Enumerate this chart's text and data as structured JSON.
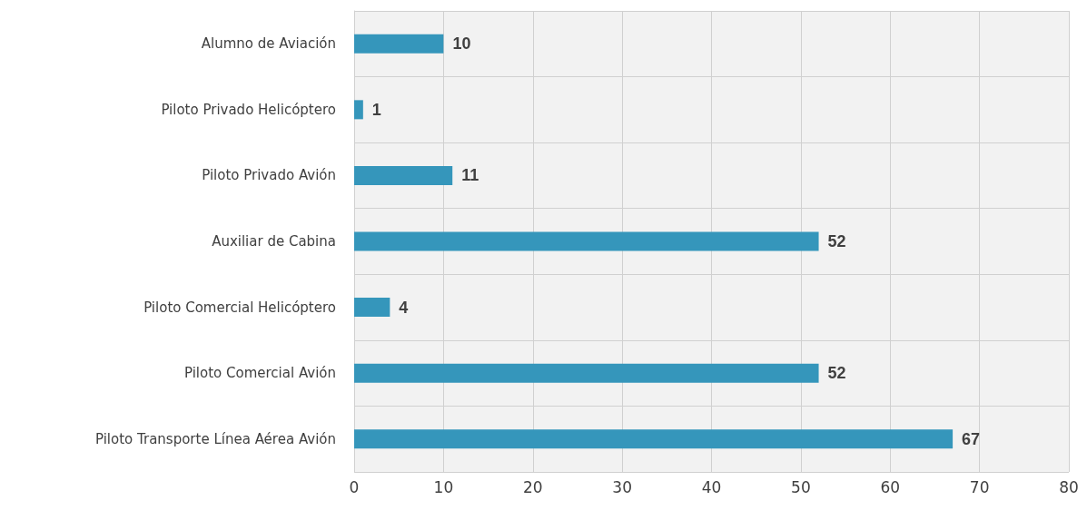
{
  "chart_data": {
    "type": "bar",
    "orientation": "horizontal",
    "categories": [
      "Alumno de Aviación",
      "Piloto Privado Helicóptero",
      "Piloto Privado Avión",
      "Auxiliar de Cabina",
      "Piloto Comercial Helicóptero",
      "Piloto Comercial Avión",
      "Piloto Transporte Línea Aérea Avión"
    ],
    "values": [
      10,
      1,
      11,
      52,
      4,
      52,
      67
    ],
    "color": "#3596bb",
    "xlim": [
      0,
      80
    ],
    "xticks": [
      0,
      10,
      20,
      30,
      40,
      50,
      60,
      70,
      80
    ],
    "grid": true,
    "data_labels": true
  }
}
